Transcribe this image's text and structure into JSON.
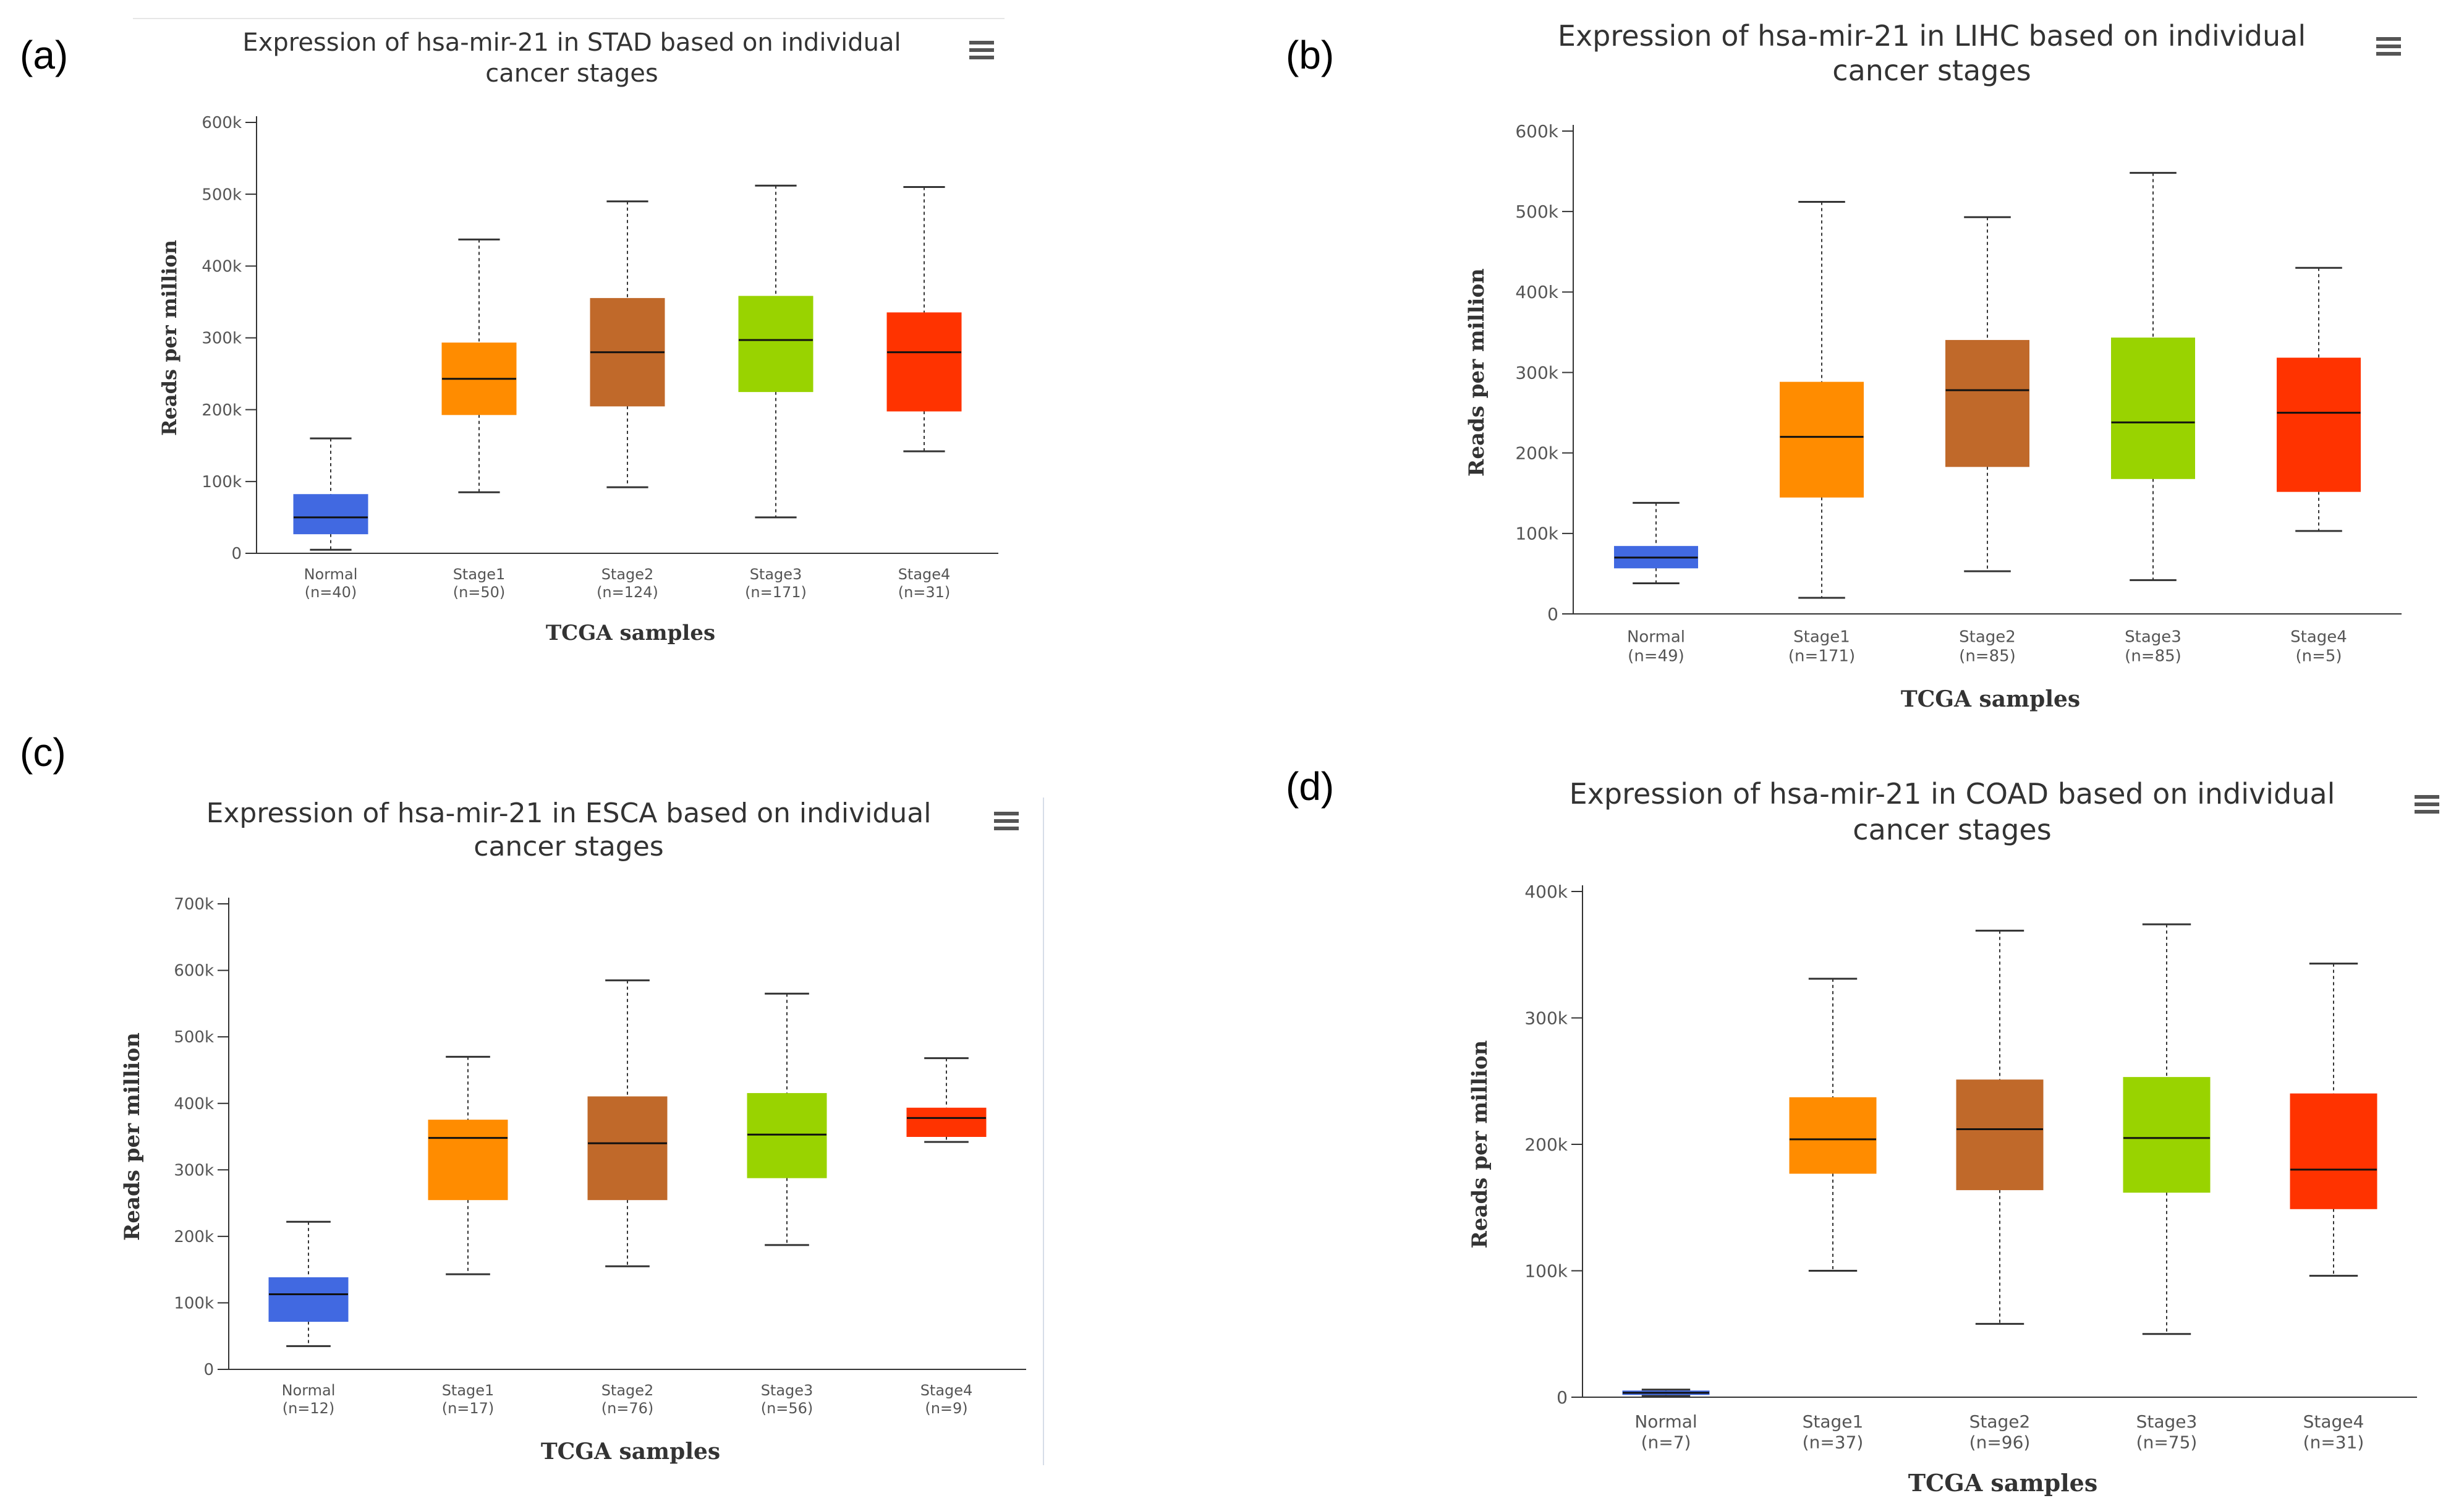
{
  "panel_labels": [
    "(a)",
    "(b)",
    "(c)",
    "(d)"
  ],
  "menu_icon": "hamburger-menu-icon",
  "chart_data": [
    {
      "type": "boxplot",
      "title": [
        "Expression of hsa-mir-21 in STAD based on individual",
        "cancer stages"
      ],
      "xlabel": "TCGA samples",
      "ylabel": "Reads per million",
      "ylim": [
        0,
        600000
      ],
      "yticks": [
        0,
        100000,
        200000,
        300000,
        400000,
        500000,
        600000
      ],
      "ytick_labels": [
        "0",
        "100k",
        "200k",
        "300k",
        "400k",
        "500k",
        "600k"
      ],
      "categories": [
        {
          "name": "Normal",
          "n": "(n=40)",
          "color": "#4169E1",
          "min": 5000,
          "q1": 27000,
          "median": 50000,
          "q3": 82000,
          "max": 160000
        },
        {
          "name": "Stage1",
          "n": "(n=50)",
          "color": "#FF8C00",
          "min": 85000,
          "q1": 193000,
          "median": 243000,
          "q3": 293000,
          "max": 437000
        },
        {
          "name": "Stage2",
          "n": "(n=124)",
          "color": "#C0692A",
          "min": 92000,
          "q1": 205000,
          "median": 280000,
          "q3": 355000,
          "max": 490000
        },
        {
          "name": "Stage3",
          "n": "(n=171)",
          "color": "#99D300",
          "min": 50000,
          "q1": 225000,
          "median": 297000,
          "q3": 358000,
          "max": 512000
        },
        {
          "name": "Stage4",
          "n": "(n=31)",
          "color": "#FF3300",
          "min": 142000,
          "q1": 198000,
          "median": 280000,
          "q3": 335000,
          "max": 510000
        }
      ]
    },
    {
      "type": "boxplot",
      "title": [
        "Expression of hsa-mir-21 in LIHC based on individual",
        "cancer stages"
      ],
      "xlabel": "TCGA samples",
      "ylabel": "Reads per million",
      "ylim": [
        0,
        600000
      ],
      "yticks": [
        0,
        100000,
        200000,
        300000,
        400000,
        500000,
        600000
      ],
      "ytick_labels": [
        "0",
        "100k",
        "200k",
        "300k",
        "400k",
        "500k",
        "600k"
      ],
      "categories": [
        {
          "name": "Normal",
          "n": "(n=49)",
          "color": "#4169E1",
          "min": 38000,
          "q1": 57000,
          "median": 70000,
          "q3": 84000,
          "max": 138000
        },
        {
          "name": "Stage1",
          "n": "(n=171)",
          "color": "#FF8C00",
          "min": 20000,
          "q1": 145000,
          "median": 220000,
          "q3": 288000,
          "max": 512000
        },
        {
          "name": "Stage2",
          "n": "(n=85)",
          "color": "#C0692A",
          "min": 53000,
          "q1": 183000,
          "median": 278000,
          "q3": 340000,
          "max": 493000
        },
        {
          "name": "Stage3",
          "n": "(n=85)",
          "color": "#99D300",
          "min": 42000,
          "q1": 168000,
          "median": 238000,
          "q3": 343000,
          "max": 548000
        },
        {
          "name": "Stage4",
          "n": "(n=5)",
          "color": "#FF3300",
          "min": 103000,
          "q1": 152000,
          "median": 250000,
          "q3": 318000,
          "max": 430000
        }
      ]
    },
    {
      "type": "boxplot",
      "title": [
        "Expression of hsa-mir-21 in ESCA based on individual",
        "cancer stages"
      ],
      "xlabel": "TCGA samples",
      "ylabel": "Reads per million",
      "ylim": [
        0,
        700000
      ],
      "yticks": [
        0,
        100000,
        200000,
        300000,
        400000,
        500000,
        600000,
        700000
      ],
      "ytick_labels": [
        "0",
        "100k",
        "200k",
        "300k",
        "400k",
        "500k",
        "600k",
        "700k"
      ],
      "categories": [
        {
          "name": "Normal",
          "n": "(n=12)",
          "color": "#4169E1",
          "min": 35000,
          "q1": 72000,
          "median": 113000,
          "q3": 138000,
          "max": 222000
        },
        {
          "name": "Stage1",
          "n": "(n=17)",
          "color": "#FF8C00",
          "min": 143000,
          "q1": 255000,
          "median": 348000,
          "q3": 375000,
          "max": 470000
        },
        {
          "name": "Stage2",
          "n": "(n=76)",
          "color": "#C0692A",
          "min": 155000,
          "q1": 255000,
          "median": 340000,
          "q3": 410000,
          "max": 585000
        },
        {
          "name": "Stage3",
          "n": "(n=56)",
          "color": "#99D300",
          "min": 187000,
          "q1": 288000,
          "median": 353000,
          "q3": 415000,
          "max": 565000
        },
        {
          "name": "Stage4",
          "n": "(n=9)",
          "color": "#FF3300",
          "min": 342000,
          "q1": 350000,
          "median": 378000,
          "q3": 393000,
          "max": 468000
        }
      ]
    },
    {
      "type": "boxplot",
      "title": [
        "Expression of hsa-mir-21 in COAD based on individual",
        "cancer stages"
      ],
      "xlabel": "TCGA samples",
      "ylabel": "Reads per million",
      "ylim": [
        0,
        400000
      ],
      "yticks": [
        0,
        100000,
        200000,
        300000,
        400000
      ],
      "ytick_labels": [
        "0",
        "100k",
        "200k",
        "300k",
        "400k"
      ],
      "categories": [
        {
          "name": "Normal",
          "n": "(n=7)",
          "color": "#4169E1",
          "min": 1000,
          "q1": 2000,
          "median": 3500,
          "q3": 5000,
          "max": 6000
        },
        {
          "name": "Stage1",
          "n": "(n=37)",
          "color": "#FF8C00",
          "min": 100000,
          "q1": 177000,
          "median": 204000,
          "q3": 237000,
          "max": 331000
        },
        {
          "name": "Stage2",
          "n": "(n=96)",
          "color": "#C0692A",
          "min": 58000,
          "q1": 164000,
          "median": 212000,
          "q3": 251000,
          "max": 369000
        },
        {
          "name": "Stage3",
          "n": "(n=75)",
          "color": "#99D300",
          "min": 50000,
          "q1": 162000,
          "median": 205000,
          "q3": 253000,
          "max": 374000
        },
        {
          "name": "Stage4",
          "n": "(n=31)",
          "color": "#FF3300",
          "min": 96000,
          "q1": 149000,
          "median": 180000,
          "q3": 240000,
          "max": 343000
        }
      ]
    }
  ]
}
